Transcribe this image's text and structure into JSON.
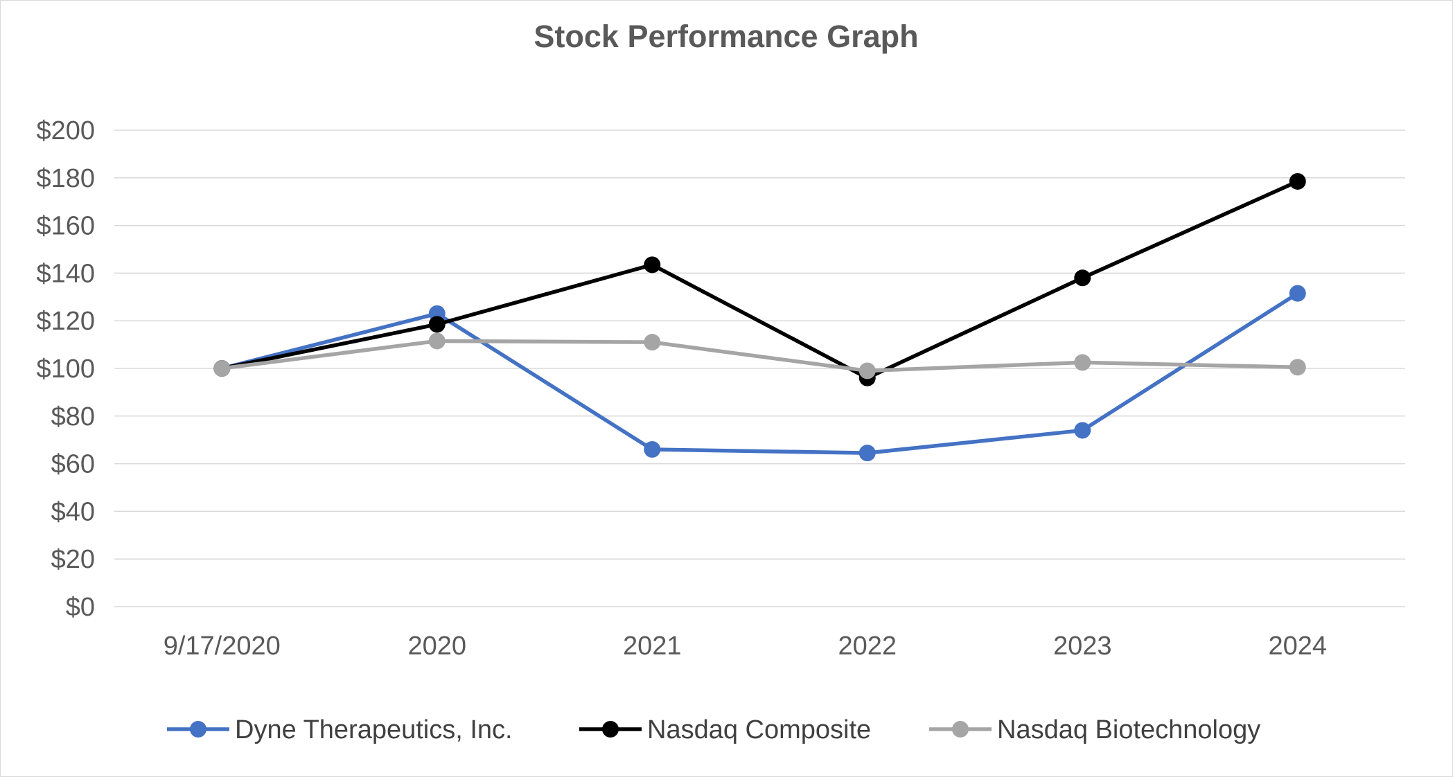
{
  "chart_data": {
    "type": "line",
    "title": "Stock Performance Graph",
    "categories": [
      "9/17/2020",
      "2020",
      "2021",
      "2022",
      "2023",
      "2024"
    ],
    "ylim": [
      0,
      200
    ],
    "y_ticks": [
      0,
      20,
      40,
      60,
      80,
      100,
      120,
      140,
      160,
      180,
      200
    ],
    "y_tick_labels": [
      "$0",
      "$20",
      "$40",
      "$60",
      "$80",
      "$100",
      "$120",
      "$140",
      "$160",
      "$180",
      "$200"
    ],
    "grid": true,
    "legend_position": "bottom",
    "series": [
      {
        "name": "Dyne Therapeutics, Inc.",
        "color": "#4472c4",
        "values": [
          100,
          123,
          66,
          64.5,
          74,
          131.5
        ]
      },
      {
        "name": "Nasdaq Composite",
        "color": "#000000",
        "values": [
          100,
          118.5,
          143.5,
          96,
          138,
          178.5
        ]
      },
      {
        "name": "Nasdaq Biotechnology",
        "color": "#a5a5a5",
        "values": [
          100,
          111.5,
          111,
          99,
          102.5,
          100.5
        ]
      }
    ]
  }
}
